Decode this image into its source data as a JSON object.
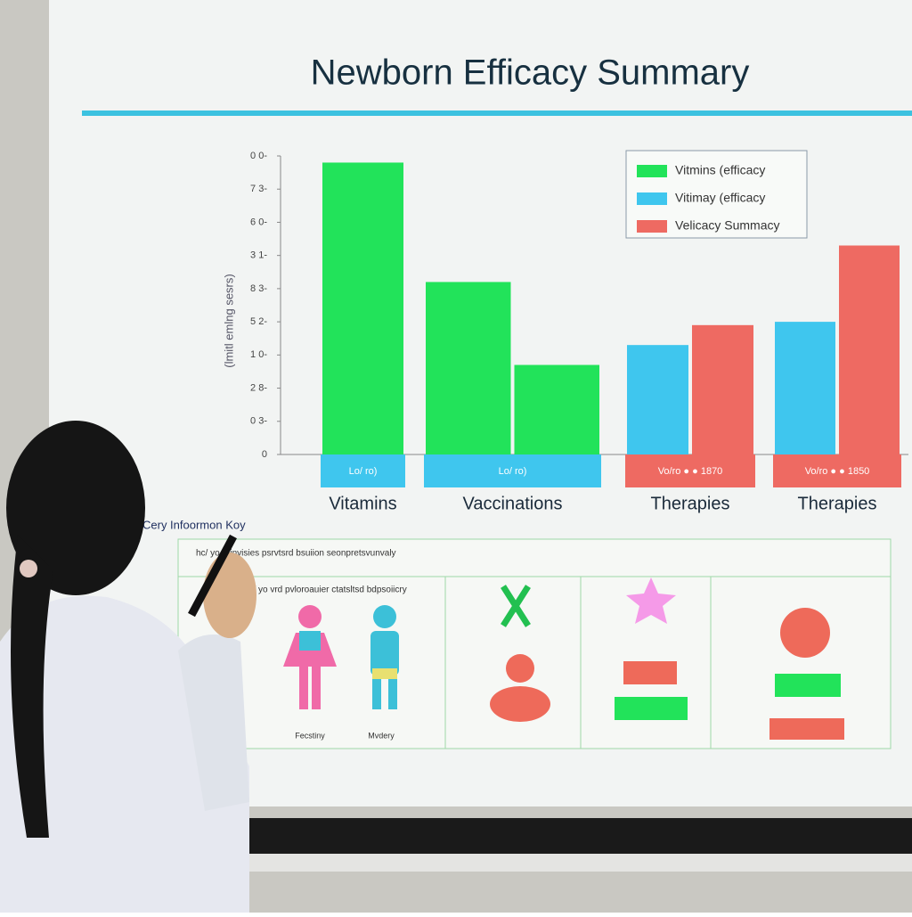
{
  "chart_data": {
    "type": "bar",
    "title": "Newborn Efficacy Summary",
    "y_label": "(lmitl emlng sesrs)",
    "categories": [
      "Vitamins",
      "Vaccinations",
      "Therapies",
      "Therapies"
    ],
    "series": [
      {
        "name": "Vitmins (efficacy",
        "color": "#22e35a",
        "values": [
          8.8,
          5.2,
          null,
          null
        ]
      },
      {
        "color": "#22e35a",
        "values": [
          null,
          2.7,
          null,
          null
        ]
      },
      {
        "name": "Vitimay (efficacy",
        "color": "#3fc6ee",
        "values": [
          null,
          null,
          3.3,
          4.0
        ]
      },
      {
        "name": "Velicacy Summacy",
        "color": "#ee6a62",
        "values": [
          null,
          null,
          3.9,
          6.3
        ]
      }
    ],
    "band_labels": [
      "Lo/ ro)",
      "Lo/ ro)",
      "Vo/ro ● ● 1870",
      "Vo/ro ● ● 1850"
    ],
    "ylim": [
      0,
      9
    ],
    "yticks": [
      {
        "value": 0,
        "label": "0"
      },
      {
        "value": 1,
        "label": "0 3-"
      },
      {
        "value": 2,
        "label": "2 8-"
      },
      {
        "value": 3,
        "label": "1 0-"
      },
      {
        "value": 4,
        "label": "5 2-"
      },
      {
        "value": 5,
        "label": "8 3-"
      },
      {
        "value": 6,
        "label": "3 1-"
      },
      {
        "value": 7,
        "label": "6 0-"
      },
      {
        "value": 8,
        "label": "7 3-"
      },
      {
        "value": 9,
        "label": "0 0-"
      }
    ],
    "legend": "top-right"
  },
  "key": {
    "title": "Cery Infoormon Koy",
    "header": "hc/ yo ruinvisies psrvtsrd bsuiion seonpretsvunvaly",
    "subheader": "ll/ yo vrd pvloroauier ctatsltsd bdpsoiicry",
    "labels": [
      "Fecstiny",
      "Mvdery"
    ]
  }
}
